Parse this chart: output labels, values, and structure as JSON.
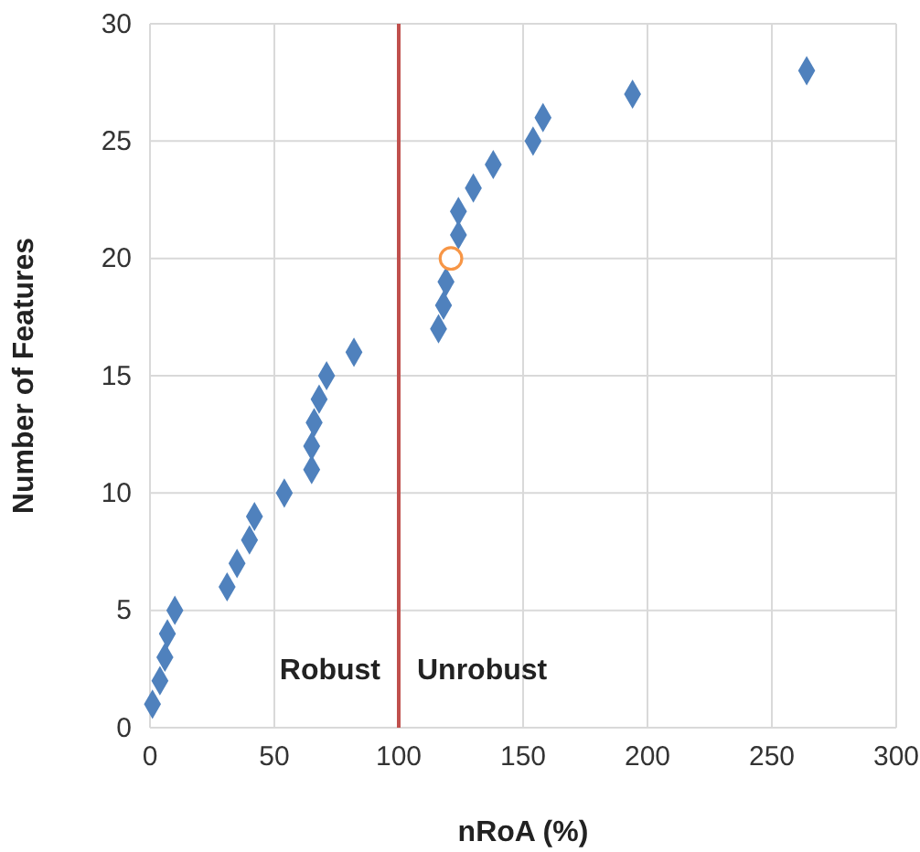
{
  "chart_data": {
    "type": "scatter",
    "xlabel": "nRoA (%)",
    "ylabel": "Number of Features",
    "xlim": [
      0,
      300
    ],
    "xticks": [
      0,
      50,
      100,
      150,
      200,
      250,
      300
    ],
    "ylim": [
      0,
      30
    ],
    "yticks": [
      0,
      5,
      10,
      15,
      20,
      25,
      30
    ],
    "grid": true,
    "series": [
      {
        "color": "#4f81bd",
        "marker": "diamond",
        "x": [
          1,
          4,
          6,
          7,
          10,
          31,
          35,
          40,
          42,
          54,
          65,
          65,
          66,
          68,
          71,
          82,
          116,
          118,
          119,
          124,
          124,
          130,
          138,
          154,
          158,
          194,
          264
        ],
        "values": [
          1,
          2,
          3,
          4,
          5,
          6,
          7,
          8,
          9,
          10,
          11,
          12,
          13,
          14,
          15,
          16,
          17,
          18,
          19,
          21,
          22,
          23,
          24,
          25,
          26,
          27,
          28
        ]
      },
      {
        "color": "#f79646",
        "marker": "circle",
        "x": [
          121
        ],
        "values": [
          20
        ]
      }
    ],
    "ref_lines": [
      {
        "axis": "x",
        "value": 100,
        "color": "#c0504d"
      }
    ],
    "annotations": [
      "Robust",
      "Unrobust"
    ]
  }
}
